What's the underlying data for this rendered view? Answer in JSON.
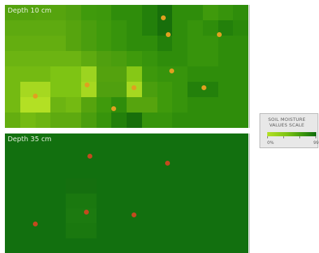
{
  "panels": [
    {
      "title": "Depth 10 cm",
      "rows": 8,
      "marker_color": "#e0a020",
      "colors": [
        [
          "#54a20e",
          "#54a20e",
          "#56a40e",
          "#56a40e",
          "#50a00f",
          "#3f9a0c",
          "#3d980c",
          "#2f8d0b",
          "#2f8d0b",
          "#23800b",
          "#186f0b",
          "#2f8d0b",
          "#2f8d0b",
          "#3f9a0c",
          "#37940c",
          "#2f8d0b"
        ],
        [
          "#5eaa10",
          "#5eaa10",
          "#5eaa10",
          "#5eaa10",
          "#56a40e",
          "#4a9e0e",
          "#3f9a0c",
          "#37940c",
          "#2f8d0b",
          "#23800b",
          "#186f0b",
          "#2f8d0b",
          "#37940c",
          "#2f8d0b",
          "#23800b",
          "#2a880b"
        ],
        [
          "#64ae10",
          "#64ae10",
          "#64ae10",
          "#64ae10",
          "#56a40e",
          "#4a9e0e",
          "#3f9a0c",
          "#37940c",
          "#2f8d0b",
          "#2f8d0b",
          "#23800b",
          "#2f8d0b",
          "#37940c",
          "#37940c",
          "#2f8d0b",
          "#2f8d0b"
        ],
        [
          "#6cb412",
          "#6cb412",
          "#6cb412",
          "#6cb412",
          "#6cb412",
          "#5eaa10",
          "#50a00f",
          "#4a9e0e",
          "#3f9a0c",
          "#37940c",
          "#2f8d0b",
          "#2f8d0b",
          "#37940c",
          "#37940c",
          "#2f8d0b",
          "#2f8d0b"
        ],
        [
          "#74ba12",
          "#74ba12",
          "#74ba12",
          "#7ec414",
          "#7ec414",
          "#9cd420",
          "#54a20e",
          "#54a20e",
          "#86c816",
          "#3d980c",
          "#37940c",
          "#37940c",
          "#2f8d0b",
          "#2f8d0b",
          "#2f8d0b",
          "#2f8d0b"
        ],
        [
          "#74ba12",
          "#a6d820",
          "#a6d820",
          "#7ec414",
          "#7ec414",
          "#a6d820",
          "#50a00f",
          "#50a00f",
          "#a6d820",
          "#4a9e0e",
          "#3f9a0c",
          "#37940c",
          "#23800b",
          "#23800b",
          "#2f8d0b",
          "#2f8d0b"
        ],
        [
          "#74ba12",
          "#b3e024",
          "#b3e024",
          "#6cb412",
          "#74ba12",
          "#56a40e",
          "#3f9a0c",
          "#2f8d0b",
          "#56a40e",
          "#56a40e",
          "#3f9a0c",
          "#37940c",
          "#2f8d0b",
          "#2f8d0b",
          "#2f8d0b",
          "#2f8d0b"
        ],
        [
          "#64ae10",
          "#74ba12",
          "#6cb412",
          "#5eaa10",
          "#5eaa10",
          "#4a9e0e",
          "#37940c",
          "#23800b",
          "#186f0b",
          "#37940c",
          "#37940c",
          "#2f8d0b",
          "#2f8d0b",
          "#2f8d0b",
          "#2f8d0b",
          "#2f8d0b"
        ]
      ]
    },
    {
      "title": "Depth 35 cm",
      "rows": 8,
      "marker_color": "#c24a1e",
      "colors": [
        [
          "#12700f",
          "#12700f",
          "#12700f",
          "#12700f",
          "#12700f",
          "#12700f",
          "#12700f",
          "#12700f",
          "#12700f",
          "#12700f",
          "#12700f",
          "#12700f",
          "#12700f",
          "#12700f",
          "#12700f",
          "#12700f"
        ],
        [
          "#12700f",
          "#12700f",
          "#12700f",
          "#12700f",
          "#12700f",
          "#12700f",
          "#12700f",
          "#12700f",
          "#12700f",
          "#12700f",
          "#12700f",
          "#12700f",
          "#12700f",
          "#12700f",
          "#12700f",
          "#12700f"
        ],
        [
          "#12700f",
          "#12700f",
          "#12700f",
          "#12700f",
          "#12700f",
          "#12700f",
          "#12700f",
          "#12700f",
          "#12700f",
          "#12700f",
          "#12700f",
          "#12700f",
          "#12700f",
          "#12700f",
          "#12700f",
          "#12700f"
        ],
        [
          "#12700f",
          "#12700f",
          "#12700f",
          "#12700f",
          "#156f0f",
          "#156f0f",
          "#12700f",
          "#12700f",
          "#12700f",
          "#12700f",
          "#12700f",
          "#12700f",
          "#12700f",
          "#12700f",
          "#12700f",
          "#12700f"
        ],
        [
          "#12700f",
          "#12700f",
          "#12700f",
          "#12700f",
          "#1a780f",
          "#1a780f",
          "#12700f",
          "#12700f",
          "#12700f",
          "#12700f",
          "#12700f",
          "#12700f",
          "#12700f",
          "#12700f",
          "#12700f",
          "#12700f"
        ],
        [
          "#12700f",
          "#12700f",
          "#12700f",
          "#12700f",
          "#1c7a10",
          "#1c7a10",
          "#12700f",
          "#12700f",
          "#12700f",
          "#12700f",
          "#12700f",
          "#12700f",
          "#12700f",
          "#12700f",
          "#12700f",
          "#12700f"
        ],
        [
          "#12700f",
          "#12700f",
          "#12700f",
          "#12700f",
          "#1a780f",
          "#1a780f",
          "#12700f",
          "#12700f",
          "#12700f",
          "#12700f",
          "#12700f",
          "#12700f",
          "#12700f",
          "#12700f",
          "#12700f",
          "#12700f"
        ],
        [
          "#12700f",
          "#12700f",
          "#12700f",
          "#12700f",
          "#12700f",
          "#12700f",
          "#12700f",
          "#12700f",
          "#12700f",
          "#12700f",
          "#12700f",
          "#12700f",
          "#12700f",
          "#12700f",
          "#12700f",
          "#12700f"
        ]
      ]
    }
  ],
  "legend": {
    "title": "SOIL MOISTURE VALUES SCALE",
    "min_label": "0%",
    "max_label": "99"
  }
}
